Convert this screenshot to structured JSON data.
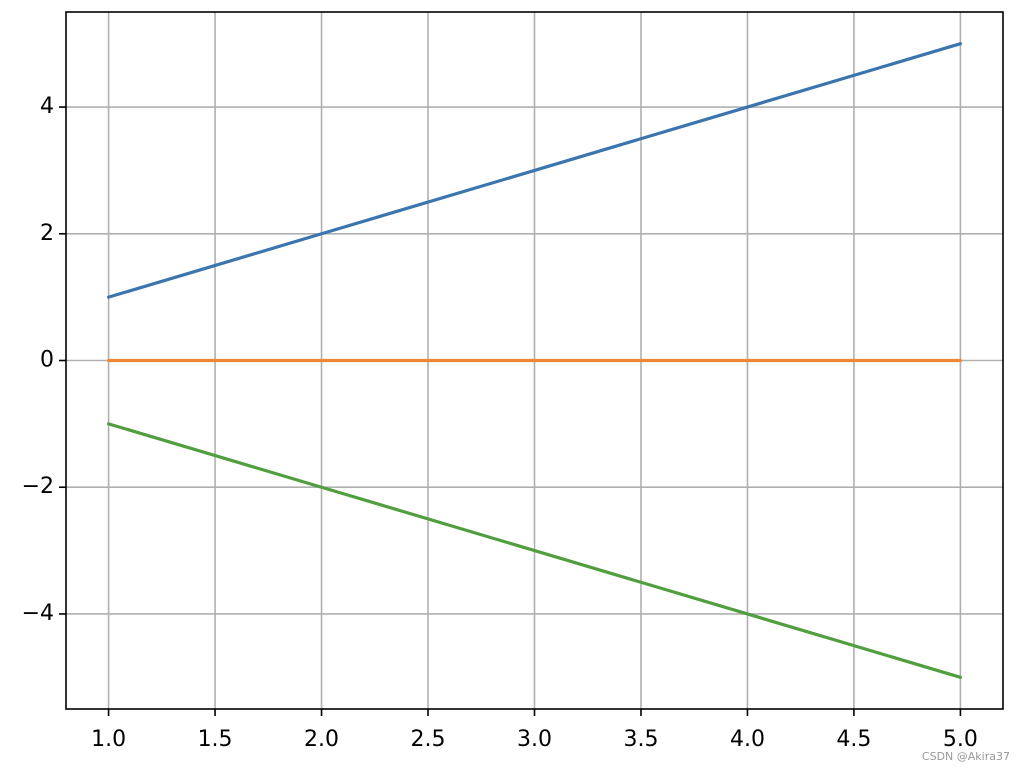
{
  "chart_data": {
    "type": "line",
    "x": [
      1,
      2,
      3,
      4,
      5
    ],
    "series": [
      {
        "color": "#3b75af",
        "values": [
          1,
          2,
          3,
          4,
          5
        ]
      },
      {
        "color": "#ef8636",
        "values": [
          0,
          0,
          0,
          0,
          0
        ]
      },
      {
        "color": "#519e3e",
        "values": [
          -1,
          -2,
          -3,
          -4,
          -5
        ]
      }
    ],
    "xlim": [
      0.8,
      5.2
    ],
    "ylim": [
      -5.5,
      5.5
    ],
    "xticks": [
      {
        "value": 1,
        "label": "1.0"
      },
      {
        "value": 1.5,
        "label": "1.5"
      },
      {
        "value": 2,
        "label": "2.0"
      },
      {
        "value": 2.5,
        "label": "2.5"
      },
      {
        "value": 3,
        "label": "3.0"
      },
      {
        "value": 3.5,
        "label": "3.5"
      },
      {
        "value": 4,
        "label": "4.0"
      },
      {
        "value": 4.5,
        "label": "4.5"
      },
      {
        "value": 5,
        "label": "5.0"
      }
    ],
    "yticks": [
      {
        "value": -4,
        "label": "−4"
      },
      {
        "value": -2,
        "label": "−2"
      },
      0,
      2,
      4
    ],
    "grid": true,
    "watermark": "CSDN @Akira37"
  }
}
